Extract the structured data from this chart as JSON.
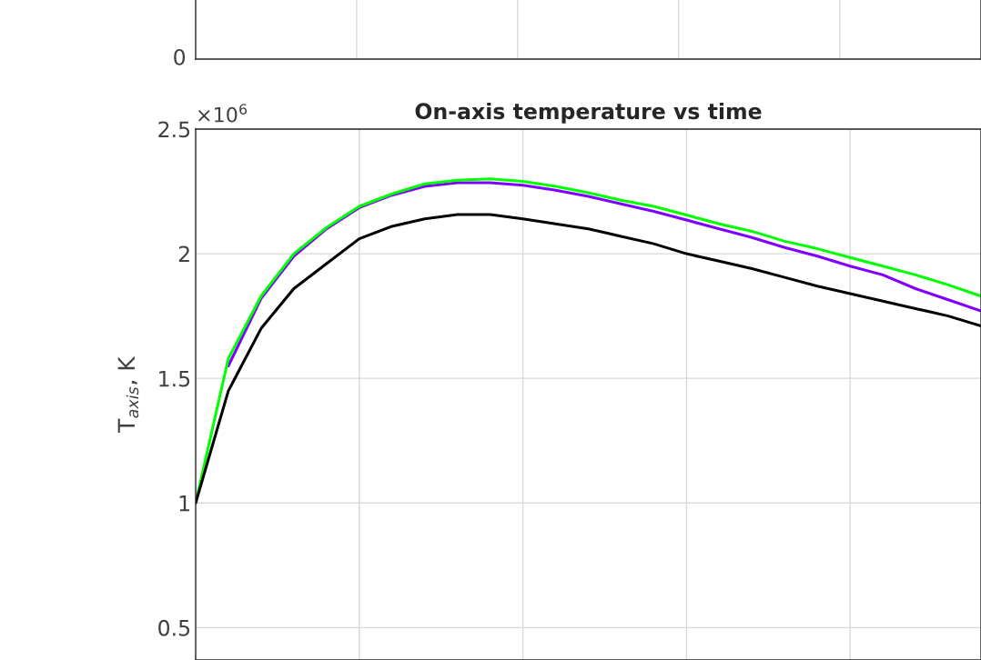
{
  "chart_data": [
    {
      "type": "other",
      "annotations": [
        "0"
      ]
    },
    {
      "type": "line",
      "title": "On-axis temperature vs time",
      "ylabel": "T$_{axis}$, K",
      "annotations": [
        "×10$^{6}$"
      ],
      "categories": [
        null,
        null,
        null,
        null,
        null,
        null,
        null,
        null,
        null,
        null,
        null,
        null,
        null,
        null,
        null,
        null,
        null,
        null,
        null,
        null,
        null,
        null,
        null,
        null,
        null
      ],
      "ylim": [
        0.37,
        2.5
      ],
      "yticks": [
        0.5,
        1,
        1.5,
        2,
        2.5
      ],
      "grid": true,
      "tick_labels": "y",
      "line_style": "solid",
      "marker": "none",
      "series": [
        {
          "color": "#8000ff",
          "values": [
            null,
            1.55,
            1.82,
            1.99,
            2.1,
            2.185,
            2.235,
            2.27,
            2.285,
            2.285,
            2.275,
            2.255,
            2.23,
            2.2,
            2.17,
            2.135,
            2.1,
            2.065,
            2.025,
            1.99,
            1.95,
            1.915,
            1.86,
            1.815,
            1.77
          ]
        },
        {
          "color": "#00ff00",
          "values": [
            1.0,
            1.58,
            1.83,
            2.0,
            2.105,
            2.19,
            2.24,
            2.28,
            2.295,
            2.3,
            2.29,
            2.27,
            2.245,
            2.215,
            2.19,
            2.155,
            2.12,
            2.09,
            2.05,
            2.02,
            1.985,
            1.95,
            1.915,
            1.875,
            1.83
          ]
        },
        {
          "color": "#000000",
          "values": [
            1.0,
            1.45,
            1.7,
            1.86,
            1.96,
            2.06,
            2.11,
            2.14,
            2.157,
            2.157,
            2.14,
            2.12,
            2.1,
            2.07,
            2.04,
            2.0,
            1.97,
            1.94,
            1.905,
            1.87,
            1.84,
            1.81,
            1.78,
            1.75,
            1.71
          ]
        }
      ]
    }
  ]
}
